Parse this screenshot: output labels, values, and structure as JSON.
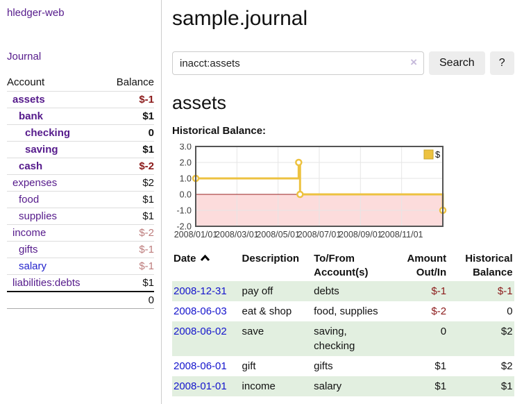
{
  "app": {
    "title": "hledger-web"
  },
  "sidebar": {
    "nav": {
      "journal_label": "Journal"
    },
    "accounts_table": {
      "headers": [
        "Account",
        "Balance"
      ],
      "rows": [
        {
          "account": "assets",
          "balance": "$-1",
          "indent": 0,
          "bold": true,
          "balance_color": "negative"
        },
        {
          "account": "bank",
          "balance": "$1",
          "indent": 1,
          "bold": true,
          "balance_color": "normal"
        },
        {
          "account": "checking",
          "balance": "0",
          "indent": 2,
          "bold": true,
          "balance_color": "normal"
        },
        {
          "account": "saving",
          "balance": "$1",
          "indent": 2,
          "bold": true,
          "balance_color": "normal"
        },
        {
          "account": "cash",
          "balance": "$-2",
          "indent": 1,
          "bold": true,
          "balance_color": "negative"
        },
        {
          "account": "expenses",
          "balance": "$2",
          "indent": 0,
          "bold": false,
          "balance_color": "normal"
        },
        {
          "account": "food",
          "balance": "$1",
          "indent": 1,
          "bold": false,
          "balance_color": "normal"
        },
        {
          "account": "supplies",
          "balance": "$1",
          "indent": 1,
          "bold": false,
          "balance_color": "normal"
        },
        {
          "account": "income",
          "balance": "$-2",
          "indent": 0,
          "bold": false,
          "balance_color": "negative-dim"
        },
        {
          "account": "gifts",
          "balance": "$-1",
          "indent": 1,
          "bold": false,
          "balance_color": "negative-dim"
        },
        {
          "account": "salary",
          "balance": "$-1",
          "indent": 1,
          "bold": false,
          "balance_color": "negative-dim",
          "link_color": "blue"
        },
        {
          "account": "liabilities:debts",
          "balance": "$1",
          "indent": 0,
          "bold": false,
          "balance_color": "normal"
        }
      ],
      "total": "0"
    }
  },
  "header": {
    "title": "sample.journal"
  },
  "search": {
    "value": "inacct:assets",
    "button_label": "Search",
    "help_label": "?"
  },
  "icons": {
    "clear_search": "×",
    "date_sort": "chevron-up"
  },
  "main": {
    "account_heading": "assets",
    "chart_label": "Historical Balance:"
  },
  "chart_data": {
    "type": "line",
    "step": true,
    "title": "Historical Balance",
    "series": [
      {
        "name": "$",
        "color": "#edc240",
        "points": [
          {
            "date": "2008-01-01",
            "value": 1
          },
          {
            "date": "2008-06-01",
            "value": 2
          },
          {
            "date": "2008-06-03",
            "value": 0
          },
          {
            "date": "2008-12-31",
            "value": -1
          }
        ]
      }
    ],
    "ylim": [
      -2,
      3
    ],
    "yticks": [
      "3.0",
      "2.0",
      "1.0",
      "0.0",
      "-1.0",
      "-2.0"
    ],
    "xticks": [
      "2008/01/01",
      "2008/03/01",
      "2008/05/01",
      "2008/07/01",
      "2008/09/01",
      "2008/11/01"
    ],
    "legend": {
      "label": "$",
      "position": "top-right"
    },
    "grid": true,
    "negative_region_color": "#fcdcdc",
    "zero_line_color": "#991f1f"
  },
  "transactions": {
    "headers": [
      {
        "label": "Date",
        "sort": "ascending"
      },
      {
        "label": "Description"
      },
      {
        "label": "To/From Account(s)"
      },
      {
        "label": "Amount Out/In"
      },
      {
        "label": "Historical Balance"
      }
    ],
    "rows": [
      {
        "date": "2008-12-31",
        "description": "pay off",
        "accounts": "debts",
        "amount": "$-1",
        "amount_negative": true,
        "balance": "$-1",
        "balance_negative": true
      },
      {
        "date": "2008-06-03",
        "description": "eat & shop",
        "accounts": "food, supplies",
        "amount": "$-2",
        "amount_negative": true,
        "balance": "0",
        "balance_negative": false
      },
      {
        "date": "2008-06-02",
        "description": "save",
        "accounts": "saving, checking",
        "amount": "0",
        "amount_negative": false,
        "balance": "$2",
        "balance_negative": false
      },
      {
        "date": "2008-06-01",
        "description": "gift",
        "accounts": "gifts",
        "amount": "$1",
        "amount_negative": false,
        "balance": "$2",
        "balance_negative": false
      },
      {
        "date": "2008-01-01",
        "description": "income",
        "accounts": "salary",
        "amount": "$1",
        "amount_negative": false,
        "balance": "$1",
        "balance_negative": false
      }
    ]
  },
  "colors": {
    "accent_purple": "#551a8b",
    "link_blue": "#1414cc",
    "negative": "#8b1a1a",
    "negative_dim": "#bd7c7c",
    "row_stripe_green": "#e2efe0",
    "chart_series_gold": "#edc240",
    "chart_negative_fill": "#fcdcdc",
    "chart_zero_line": "#991f1f"
  }
}
